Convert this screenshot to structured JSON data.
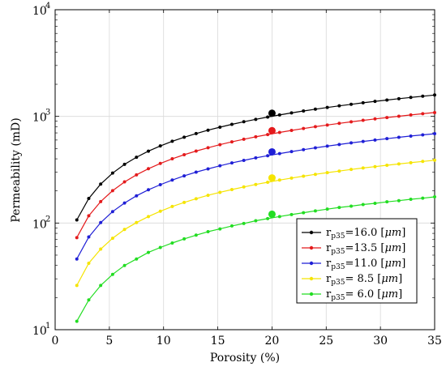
{
  "chart_data": {
    "type": "line",
    "xlabel": "Porosity (%)",
    "ylabel": "Permeability (mD)",
    "xlim": [
      0,
      35
    ],
    "ylim": [
      10,
      10000
    ],
    "yscale": "log",
    "grid": true,
    "legend_position": "bottom-right",
    "x_ticks": [
      "0",
      "5",
      "10",
      "15",
      "20",
      "25",
      "30",
      "35"
    ],
    "y_ticks": [
      {
        "base": "10",
        "exp": "1"
      },
      {
        "base": "10",
        "exp": "2"
      },
      {
        "base": "10",
        "exp": "3"
      },
      {
        "base": "10",
        "exp": "4"
      }
    ],
    "highlight_x": 20,
    "x": [
      2,
      3.1,
      4.2,
      5.3,
      6.4,
      7.5,
      8.6,
      9.7,
      10.8,
      11.9,
      13,
      14.1,
      15.2,
      16.3,
      17.4,
      18.5,
      19.6,
      20.7,
      21.8,
      22.9,
      24,
      25.1,
      26.2,
      27.3,
      28.4,
      29.5,
      30.6,
      31.7,
      32.8,
      33.9,
      35
    ],
    "series": [
      {
        "name": "r_p35=16.0 [μm]",
        "legend_base": "r",
        "legend_sub": "p35",
        "legend_value": "=16.0 [",
        "legend_unit": "μm",
        "legend_close": "]",
        "color": "#000000",
        "highlight_y": 1070,
        "values": [
          107,
          170,
          232,
          294,
          355,
          414,
          472,
          528,
          584,
          638,
          690,
          742,
          792,
          842,
          891,
          938,
          986,
          1032,
          1078,
          1123,
          1168,
          1212,
          1255,
          1298,
          1341,
          1383,
          1424,
          1465,
          1506,
          1546,
          1586
        ]
      },
      {
        "name": "r_p35=13.5 [μm]",
        "legend_base": "r",
        "legend_sub": "p35",
        "legend_value": "=13.5 [",
        "legend_unit": "μm",
        "legend_close": "]",
        "color": "#e41a1c",
        "highlight_y": 735,
        "values": [
          73,
          117,
          159,
          201,
          243,
          283,
          323,
          362,
          400,
          437,
          473,
          508,
          543,
          577,
          610,
          643,
          675,
          707,
          738,
          769,
          800,
          830,
          860,
          889,
          918,
          947,
          975,
          1003,
          1031,
          1059,
          1086
        ]
      },
      {
        "name": "r_p35=11.0 [μm]",
        "legend_base": "r",
        "legend_sub": "p35",
        "legend_value": "=11.0 [",
        "legend_unit": "μm",
        "legend_close": "]",
        "color": "#1f1fd6",
        "highlight_y": 465,
        "values": [
          46,
          74,
          101,
          128,
          154,
          180,
          205,
          229,
          253,
          277,
          300,
          322,
          344,
          366,
          387,
          408,
          428,
          448,
          468,
          487,
          507,
          526,
          545,
          564,
          582,
          600,
          618,
          636,
          654,
          671,
          688
        ]
      },
      {
        "name": "r_p35= 8.5 [μm]",
        "legend_base": "r",
        "legend_sub": "p35",
        "legend_value": "= 8.5 [",
        "legend_unit": "μm",
        "legend_close": "]",
        "color": "#f5e400",
        "highlight_y": 265,
        "values": [
          26,
          42,
          57,
          72,
          87,
          101,
          115,
          129,
          143,
          156,
          169,
          182,
          194,
          206,
          218,
          230,
          241,
          253,
          264,
          275,
          286,
          297,
          307,
          318,
          328,
          338,
          348,
          358,
          368,
          378,
          388
        ]
      },
      {
        "name": "r_p35= 6.0 [μm]",
        "legend_base": "r",
        "legend_sub": "p35",
        "legend_value": "= 6.0 [",
        "legend_unit": "μm",
        "legend_close": "]",
        "color": "#22dd22",
        "highlight_y": 121,
        "values": [
          12,
          19,
          26,
          33,
          40,
          46,
          53,
          59,
          65,
          71,
          77,
          83,
          88,
          94,
          99,
          105,
          110,
          115,
          120,
          125,
          130,
          135,
          140,
          144,
          149,
          153,
          158,
          162,
          167,
          171,
          176
        ]
      }
    ]
  }
}
